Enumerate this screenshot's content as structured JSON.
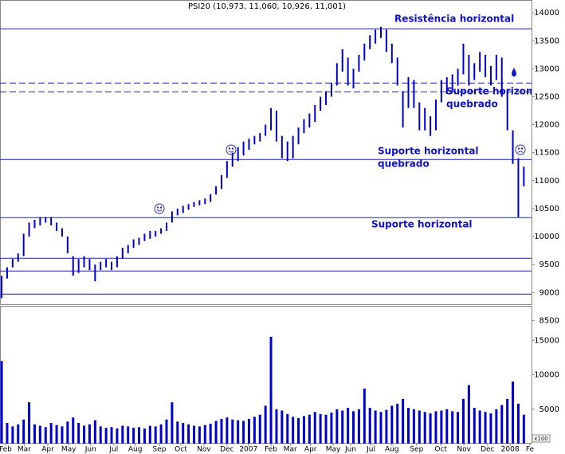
{
  "chart_data": [
    {
      "type": "ohlc",
      "title": "PSI20 (10,973, 11,060, 10,926, 11,001)",
      "color": "#0000cc",
      "high": [
        9300,
        9450,
        9600,
        9700,
        10050,
        10250,
        10300,
        10350,
        10350,
        10350,
        10250,
        10150,
        10000,
        9650,
        9600,
        9650,
        9600,
        9500,
        9550,
        9600,
        9550,
        9650,
        9800,
        9850,
        9950,
        9980,
        10050,
        10100,
        10100,
        10150,
        10250,
        10450,
        10500,
        10550,
        10580,
        10620,
        10650,
        10680,
        10760,
        10900,
        11100,
        11350,
        11500,
        11600,
        11700,
        11750,
        11800,
        11850,
        12000,
        12300,
        12250,
        11800,
        11700,
        11800,
        11950,
        12100,
        12200,
        12350,
        12500,
        12600,
        12750,
        13100,
        13350,
        13200,
        13000,
        13250,
        13450,
        13600,
        13700,
        13750,
        13700,
        13450,
        13200,
        12600,
        12850,
        12800,
        12400,
        12300,
        12150,
        12450,
        12800,
        12850,
        12900,
        13000,
        13450,
        13250,
        13100,
        13300,
        13250,
        13050,
        13250,
        13200,
        12600,
        11900,
        11400,
        11250
      ],
      "low": [
        8900,
        9250,
        9450,
        9550,
        9650,
        10000,
        10150,
        10200,
        10250,
        10200,
        10100,
        10000,
        9700,
        9300,
        9350,
        9450,
        9400,
        9200,
        9400,
        9450,
        9400,
        9450,
        9600,
        9700,
        9800,
        9850,
        9920,
        9960,
        10000,
        10050,
        10100,
        10250,
        10380,
        10420,
        10480,
        10530,
        10560,
        10580,
        10620,
        10750,
        10850,
        11050,
        11250,
        11350,
        11450,
        11550,
        11650,
        11700,
        11800,
        11900,
        11700,
        11400,
        11350,
        11400,
        11650,
        11850,
        11950,
        12050,
        12250,
        12350,
        12500,
        12700,
        12950,
        12700,
        12650,
        12950,
        13150,
        13350,
        13450,
        13550,
        13300,
        13100,
        12700,
        11950,
        12300,
        12300,
        11900,
        11900,
        11800,
        11900,
        12400,
        12550,
        12600,
        12700,
        12900,
        12700,
        12800,
        12950,
        12850,
        12700,
        12800,
        12500,
        11900,
        11300,
        10350,
        10900
      ],
      "ylim": [
        8790,
        14230
      ],
      "yticks": [
        8500,
        9000,
        9500,
        10000,
        10500,
        11000,
        11500,
        12000,
        12500,
        13000,
        13500,
        14000
      ],
      "levels": [
        {
          "value": 13715,
          "dashed": false,
          "label": [
            "Resistência horizontal"
          ]
        },
        {
          "value": 12746,
          "dashed": true
        },
        {
          "value": 12589,
          "dashed": true,
          "label": [
            "Suporte horizontal",
            "quebrado"
          ]
        },
        {
          "value": 11379,
          "dashed": false,
          "label": [
            "Suporte horizontal",
            "quebrado"
          ]
        },
        {
          "value": 10339,
          "dashed": false,
          "label": [
            "Suporte horizontal"
          ]
        },
        {
          "value": 9613,
          "dashed": false
        },
        {
          "value": 9385,
          "dashed": false
        },
        {
          "value": 8972,
          "dashed": false
        }
      ]
    },
    {
      "type": "bar",
      "color": "#0000cc",
      "unit": "x100",
      "values": [
        12000,
        3000,
        2500,
        2800,
        3500,
        6000,
        2800,
        2600,
        2400,
        3000,
        2700,
        2500,
        3200,
        3800,
        3000,
        2600,
        2800,
        3400,
        2500,
        2300,
        2400,
        2200,
        2600,
        2500,
        2300,
        2400,
        2200,
        2600,
        2500,
        2800,
        3500,
        6000,
        3200,
        3000,
        2800,
        2600,
        2500,
        2700,
        2900,
        3300,
        3600,
        3800,
        3500,
        3400,
        3300,
        3600,
        3900,
        4200,
        5500,
        15500,
        5000,
        4800,
        4300,
        3900,
        3700,
        4000,
        4200,
        4600,
        4300,
        4200,
        4500,
        5000,
        4800,
        5200,
        4700,
        5000,
        8000,
        5200,
        4800,
        4600,
        4900,
        5500,
        5800,
        6500,
        5200,
        5000,
        4800,
        4600,
        4400,
        4700,
        4800,
        5000,
        4700,
        4600,
        6500,
        8500,
        5200,
        4800,
        4600,
        4400,
        5000,
        5600,
        6500,
        9000,
        5800,
        4200
      ],
      "ylim": [
        0,
        20000
      ],
      "yticks": [
        5000,
        10000,
        15000
      ],
      "xlim": [
        -0.3,
        96.4
      ],
      "xticks": [
        {
          "value": 0.7,
          "label": "Feb"
        },
        {
          "value": 4.1,
          "label": "Mar"
        },
        {
          "value": 8.4,
          "label": "Apr"
        },
        {
          "value": 12.2,
          "label": "May"
        },
        {
          "value": 16.2,
          "label": "Jun"
        },
        {
          "value": 20.4,
          "label": "Jul"
        },
        {
          "value": 24.3,
          "label": "Aug"
        },
        {
          "value": 28.7,
          "label": "Sep"
        },
        {
          "value": 32.6,
          "label": "Oct"
        },
        {
          "value": 36.8,
          "label": "Nov"
        },
        {
          "value": 41,
          "label": "Dec"
        },
        {
          "value": 44.9,
          "label": "2007"
        },
        {
          "value": 49,
          "label": "Feb"
        },
        {
          "value": 52.5,
          "label": "Mar"
        },
        {
          "value": 56.2,
          "label": "Apr"
        },
        {
          "value": 60.3,
          "label": "May"
        },
        {
          "value": 63.5,
          "label": "Jun"
        },
        {
          "value": 67.2,
          "label": "Jul"
        },
        {
          "value": 71,
          "label": "Aug"
        },
        {
          "value": 75.5,
          "label": "Sep"
        },
        {
          "value": 79.9,
          "label": "Oct"
        },
        {
          "value": 84.1,
          "label": "Nov"
        },
        {
          "value": 88.4,
          "label": "Dec"
        },
        {
          "value": 92.5,
          "label": "2008"
        },
        {
          "value": 96.1,
          "label": "Fe"
        }
      ]
    }
  ]
}
